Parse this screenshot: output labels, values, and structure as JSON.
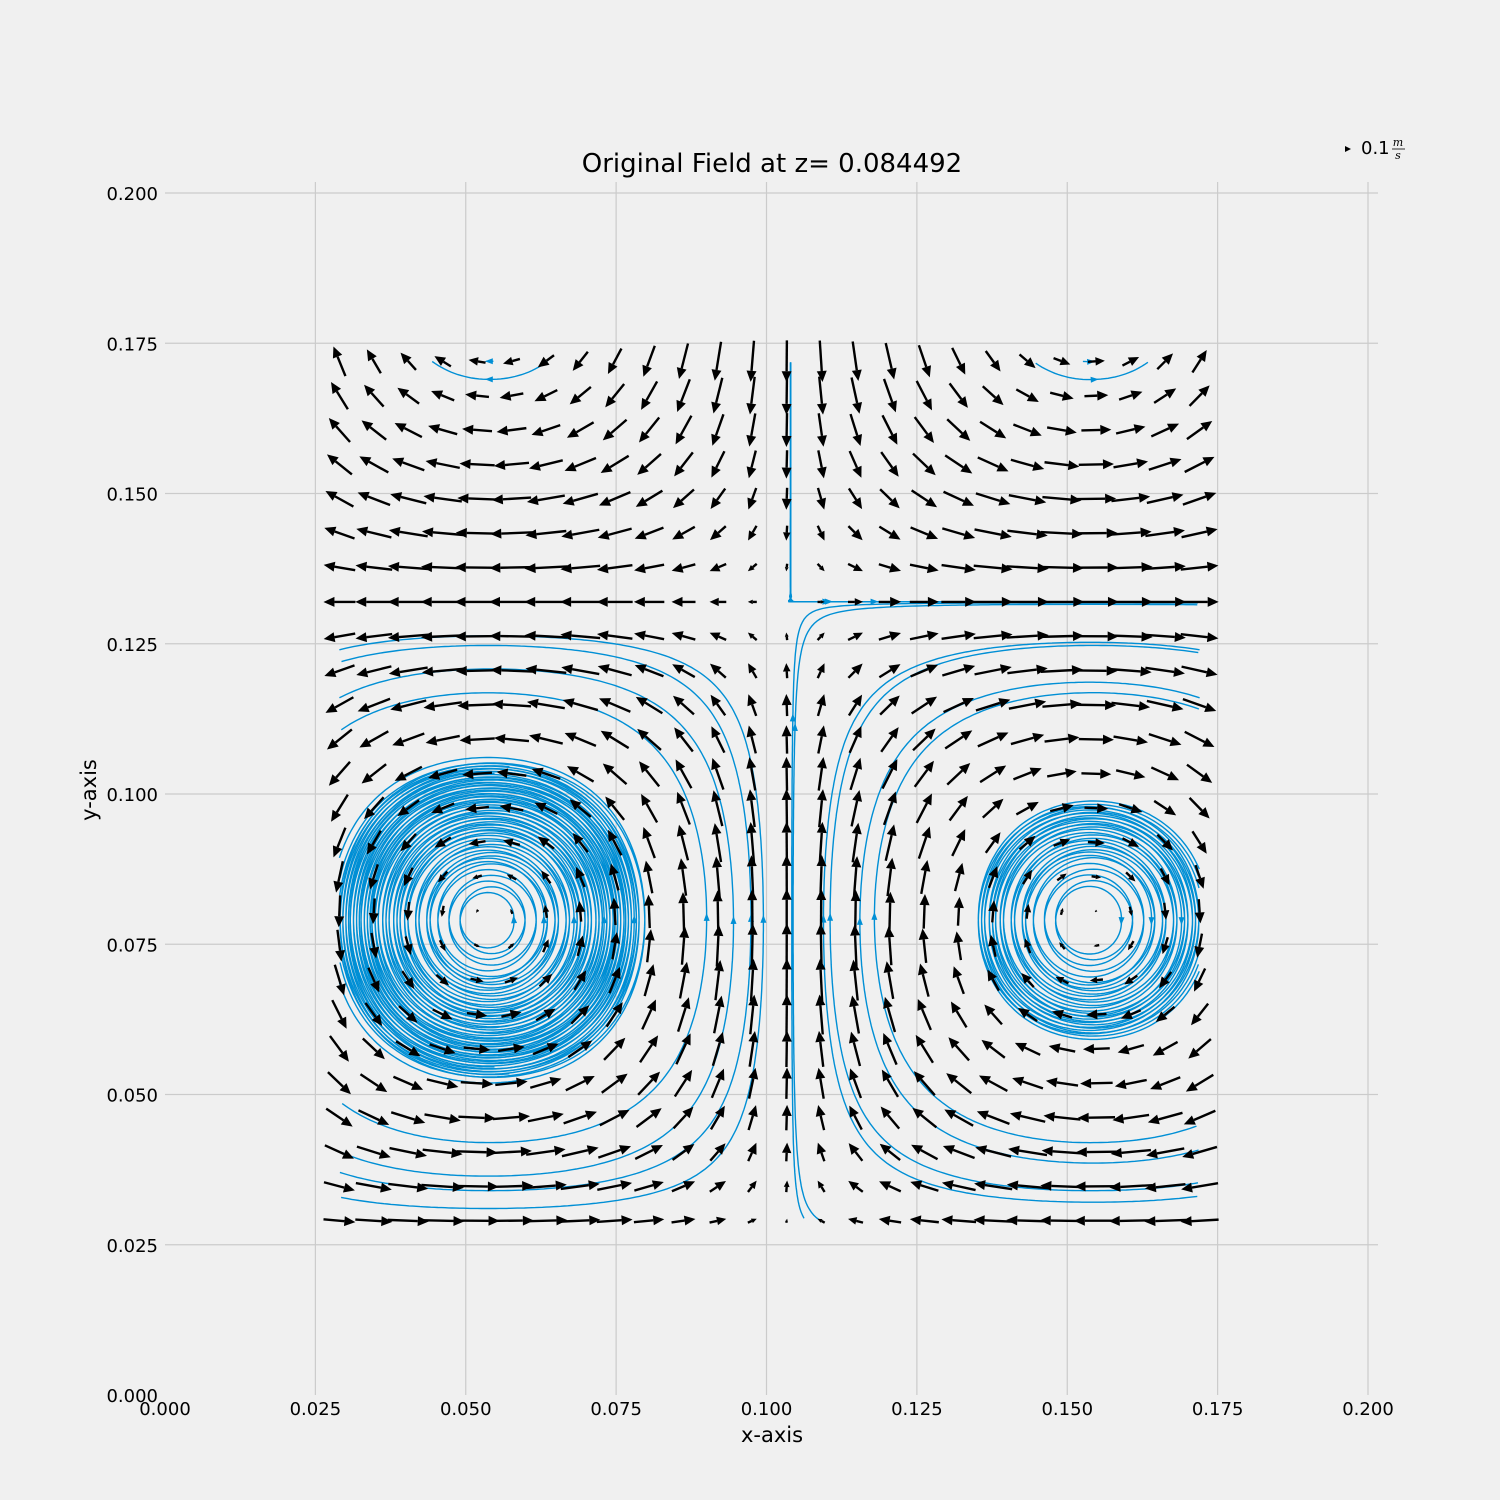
{
  "chart_data": {
    "type": "quiver",
    "title": "Original Field at z= 0.084492",
    "xlabel": "x-axis",
    "ylabel": "y-axis",
    "xlim": [
      0.0,
      0.2
    ],
    "ylim": [
      0.0,
      0.2
    ],
    "xticks": [
      "0.000",
      "0.025",
      "0.050",
      "0.075",
      "0.100",
      "0.125",
      "0.150",
      "0.175",
      "0.200"
    ],
    "yticks": [
      "0.000",
      "0.025",
      "0.050",
      "0.075",
      "0.100",
      "0.125",
      "0.150",
      "0.175",
      "0.200"
    ],
    "grid": true,
    "key": {
      "value": "0.1",
      "unit_num": "m",
      "unit_den": "s"
    },
    "field": {
      "description": "cellular vortex field with centers at (0.054, 0.079), (0.105, 0.132), (0.155, 0.079); saddles at (0.054, 0.132), (0.105, 0.079), (0.155, 0.132)",
      "grid_x_range": [
        0.029,
        0.172
      ],
      "grid_y_range": [
        0.029,
        0.172
      ],
      "grid_count": 26,
      "wavelength_x": 0.1,
      "wavelength_y": 0.106,
      "phase_x": 0.054,
      "phase_y": 0.079,
      "peak_speed": 0.9
    },
    "colors": {
      "arrows": "#000000",
      "streamlines": "#008fd5",
      "background": "#f0f0f0",
      "grid": "#cbcbcb"
    }
  }
}
